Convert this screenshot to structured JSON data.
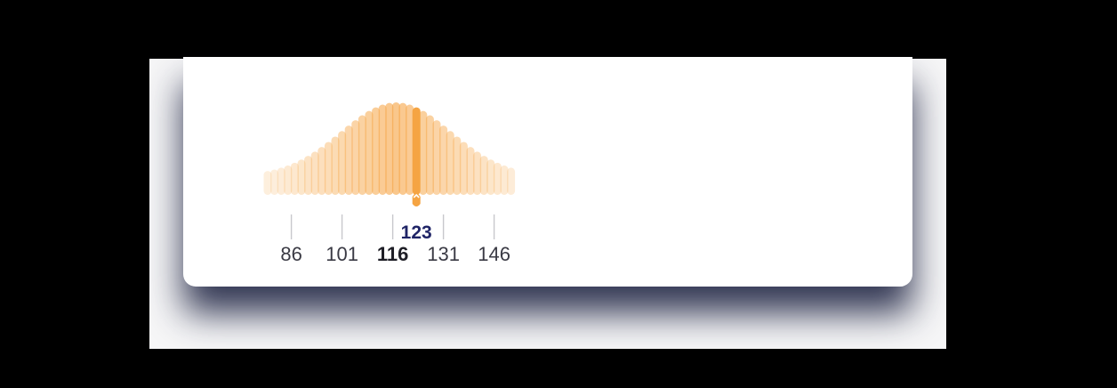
{
  "picker": {
    "selected_value": "123",
    "min": 79,
    "max": 152,
    "bar_step": 2,
    "colors": {
      "bar": "#f6a545",
      "selected_bar": "#f5a443",
      "selected_label": "#1f2466",
      "tick": "#c8c8cc"
    },
    "ticks": [
      {
        "label": "86",
        "value": 86,
        "active": false
      },
      {
        "label": "101",
        "value": 101,
        "active": false
      },
      {
        "label": "116",
        "value": 116,
        "active": true
      },
      {
        "label": "131",
        "value": 131,
        "active": false
      },
      {
        "label": "146",
        "value": 146,
        "active": false
      }
    ]
  }
}
